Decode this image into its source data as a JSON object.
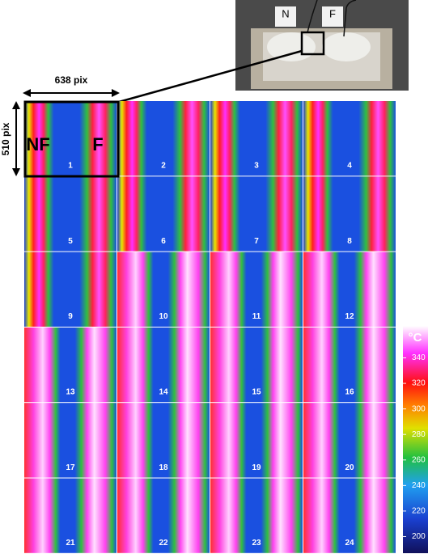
{
  "photo": {
    "labels": [
      "N",
      "F"
    ]
  },
  "scale": {
    "width": "638 pix",
    "height": "510 pix"
  },
  "panel_labels": [
    "NF",
    "F"
  ],
  "panels": [
    "1",
    "2",
    "3",
    "4",
    "5",
    "6",
    "7",
    "8",
    "9",
    "10",
    "11",
    "12",
    "13",
    "14",
    "15",
    "16",
    "17",
    "18",
    "19",
    "20",
    "21",
    "22",
    "23",
    "24"
  ],
  "colorbar": {
    "title": "°C",
    "lim": [
      187,
      365
    ],
    "ticks": [
      200,
      220,
      240,
      260,
      280,
      300,
      320,
      340
    ]
  }
}
